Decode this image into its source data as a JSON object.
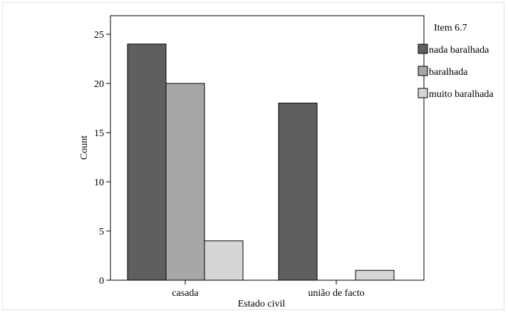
{
  "chart_data": {
    "type": "bar",
    "title": "",
    "xlabel": "Estado civil",
    "ylabel": "Count",
    "ylim": [
      0,
      25
    ],
    "yticks": [
      0,
      5,
      10,
      15,
      20,
      25
    ],
    "categories": [
      "casada",
      "união de facto"
    ],
    "legend": {
      "title": "Item 6.7",
      "placement": "right"
    },
    "series": [
      {
        "name": "nada baralhada",
        "color": "#5f5f61",
        "values": [
          24,
          18
        ]
      },
      {
        "name": "baralhada",
        "color": "#a7a7aa",
        "values": [
          20,
          0
        ]
      },
      {
        "name": "muito baralhada",
        "color": "#d6d6d6",
        "values": [
          4,
          1
        ]
      }
    ],
    "grid": false
  }
}
